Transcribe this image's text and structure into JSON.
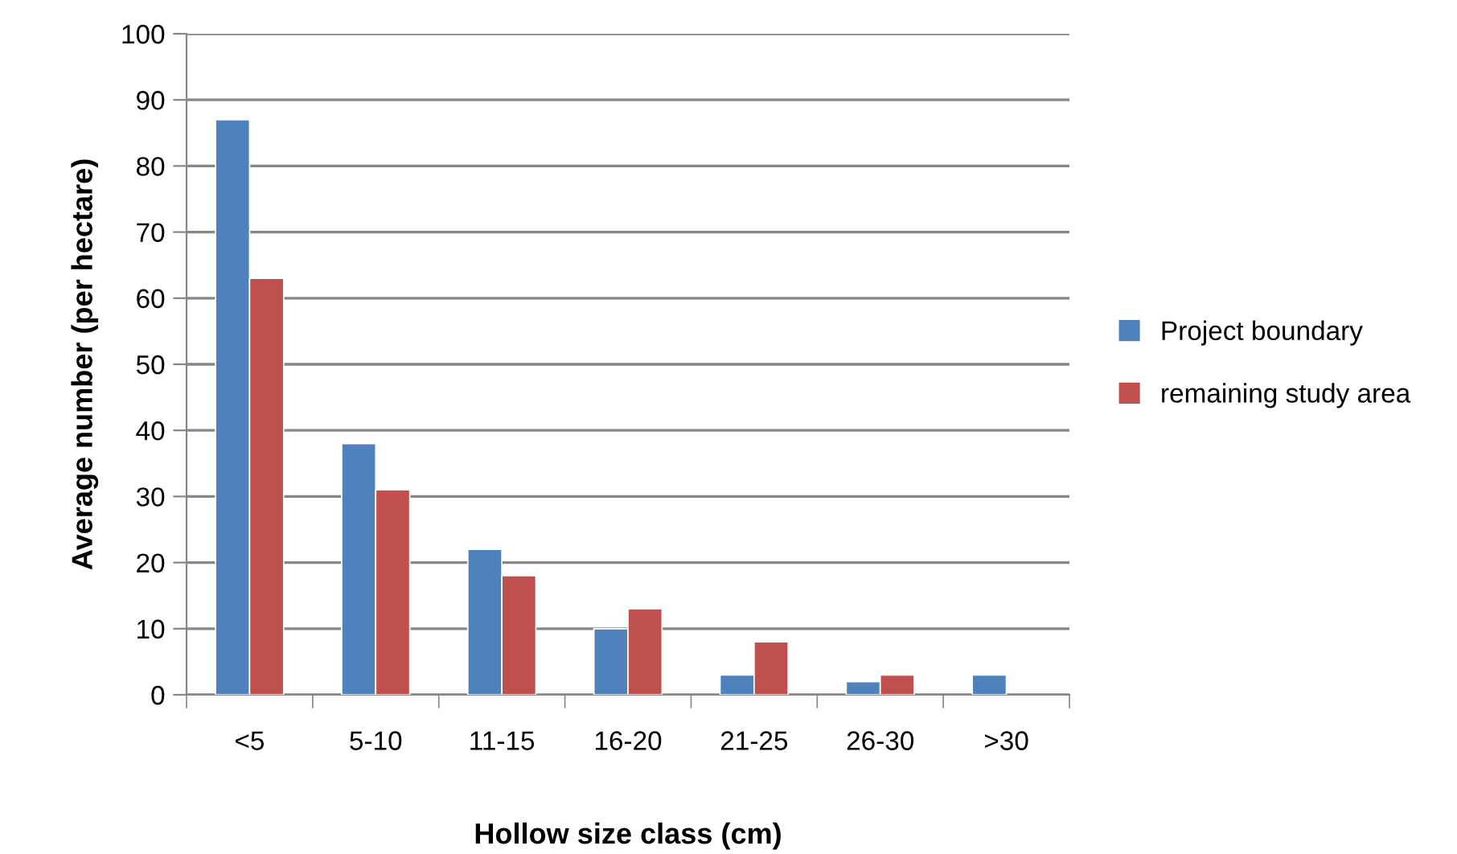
{
  "chart_data": {
    "type": "bar",
    "xlabel": "Hollow size class (cm)",
    "ylabel": "Average number (per hectare)",
    "categories": [
      "<5",
      "5-10",
      "11-15",
      "16-20",
      "21-25",
      "26-30",
      ">30"
    ],
    "series": [
      {
        "name": "Project boundary",
        "color": "#4f81bd",
        "values": [
          87,
          38,
          22,
          10,
          3,
          2,
          3
        ]
      },
      {
        "name": "remaining study area",
        "color": "#c0504d",
        "values": [
          63,
          31,
          18,
          13,
          8,
          3,
          null
        ]
      }
    ],
    "ylim": [
      0,
      100
    ],
    "yticks": [
      0,
      10,
      20,
      30,
      40,
      50,
      60,
      70,
      80,
      90,
      100
    ],
    "grid": "y",
    "legend": "right"
  }
}
